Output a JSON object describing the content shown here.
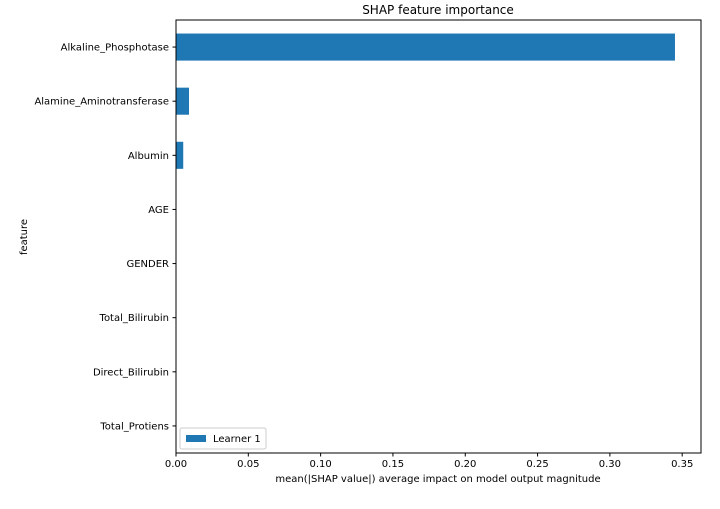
{
  "chart_data": {
    "type": "bar",
    "orientation": "horizontal",
    "title": "SHAP feature importance",
    "xlabel": "mean(|SHAP value|) average impact on model output magnitude",
    "ylabel": "feature",
    "categories": [
      "Alkaline_Phosphotase",
      "Alamine_Aminotransferase",
      "Albumin",
      "AGE",
      "GENDER",
      "Total_Bilirubin",
      "Direct_Bilirubin",
      "Total_Protiens"
    ],
    "series": [
      {
        "name": "Learner 1",
        "color": "#1f77b4",
        "values": [
          0.345,
          0.009,
          0.005,
          0.0,
          0.0,
          0.0,
          0.0,
          0.0
        ]
      }
    ],
    "xlim": [
      0.0,
      0.363
    ],
    "xticks": [
      0.0,
      0.05,
      0.1,
      0.15,
      0.2,
      0.25,
      0.3,
      0.35
    ],
    "xtick_labels": [
      "0.00",
      "0.05",
      "0.10",
      "0.15",
      "0.20",
      "0.25",
      "0.30",
      "0.35"
    ],
    "grid": false,
    "legend_position": "lower-left"
  }
}
